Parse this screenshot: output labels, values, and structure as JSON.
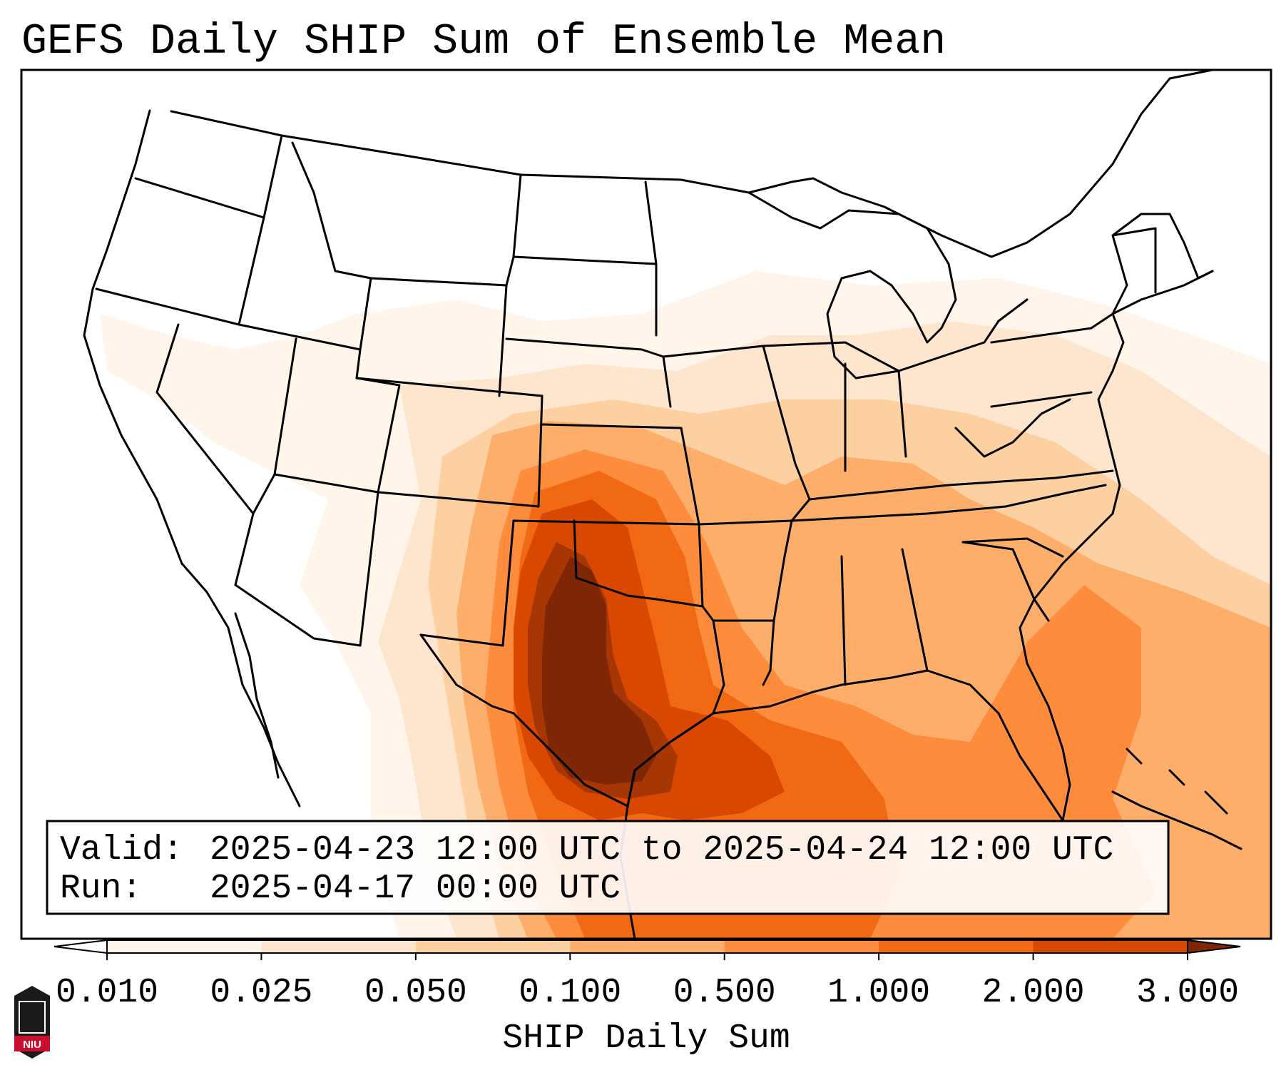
{
  "title": "GEFS Daily SHIP Sum of Ensemble Mean",
  "info": {
    "valid_label": "Valid:",
    "valid_value": "2025-04-23 12:00 UTC to 2025-04-24 12:00 UTC",
    "run_label": "Run:",
    "run_value": "2025-04-17 00:00 UTC"
  },
  "colorbar": {
    "label": "SHIP Daily Sum",
    "ticks": [
      "0.010",
      "0.025",
      "0.050",
      "0.100",
      "0.500",
      "1.000",
      "2.000",
      "3.000"
    ],
    "colors": [
      "#fff5eb",
      "#fee6ce",
      "#fdd0a2",
      "#fdae6b",
      "#fd8d3c",
      "#f16913",
      "#d94801",
      "#a63603"
    ],
    "under_color": "#ffffff",
    "over_color": "#7f2704",
    "extend": "both"
  },
  "logo": {
    "text": "NIU",
    "colors": [
      "#c8102e",
      "#1a1a1a"
    ]
  },
  "map": {
    "domain": "Contiguous United States",
    "field": "SHIP Daily Sum",
    "ocean_color": "#ffffff",
    "boundary_color": "#000000",
    "max_region": "Texas / southern Plains"
  }
}
